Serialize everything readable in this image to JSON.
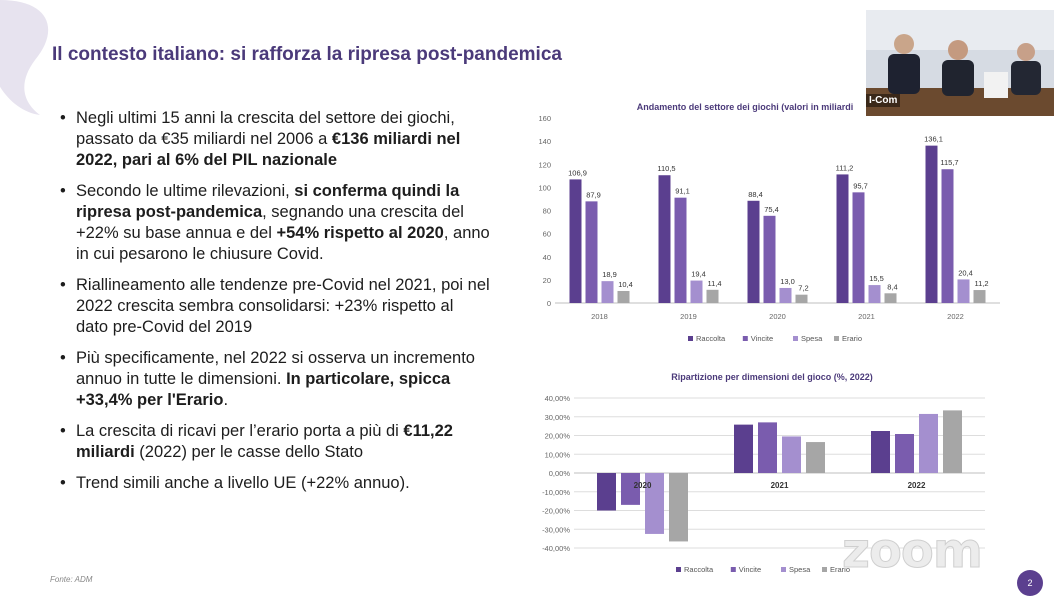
{
  "slide": {
    "title": "Il contesto italiano: si rafforza la ripresa post-pandemica",
    "fonte": "Fonte: ADM",
    "page_number": "2",
    "webcam_label": "I-Com",
    "zoom_watermark": "zoom",
    "bullets": [
      [
        {
          "t": "Negli ultimi 15 anni la crescita del settore dei giochi, passato da €35 miliardi nel 2006 a ",
          "b": false
        },
        {
          "t": "€136 miliardi nel 2022, pari al 6% del PIL nazionale",
          "b": true
        }
      ],
      [
        {
          "t": "Secondo le ultime rilevazioni, ",
          "b": false
        },
        {
          "t": "si conferma quindi la ripresa post-pandemica",
          "b": true
        },
        {
          "t": ", segnando una crescita del +22% su base annua e del ",
          "b": false
        },
        {
          "t": "+54% rispetto al 2020",
          "b": true
        },
        {
          "t": ", anno in cui pesarono le chiusure Covid.",
          "b": false
        }
      ],
      [
        {
          "t": "Riallineamento alle tendenze pre-Covid nel 2021, poi nel 2022 crescita sembra consolidarsi: +23% rispetto al dato pre-Covid del 2019",
          "b": false
        }
      ],
      [
        {
          "t": "Più specificamente, nel 2022 si osserva un incremento annuo in tutte le dimensioni. ",
          "b": false
        },
        {
          "t": "In particolare, spicca +33,4% per l'Erario",
          "b": true
        },
        {
          "t": ".",
          "b": false
        }
      ],
      [
        {
          "t": "La crescita di ricavi per l’erario porta a più di ",
          "b": false
        },
        {
          "t": "€11,22 miliardi",
          "b": true
        },
        {
          "t": " (2022) per le casse dello Stato",
          "b": false
        }
      ],
      [
        {
          "t": "Trend simili anche a livello UE (+22% annuo).",
          "b": false
        }
      ]
    ]
  },
  "colors": {
    "title": "#4b3a7a",
    "series": [
      "#5b3f8f",
      "#7a5cae",
      "#a48fcf",
      "#a6a6a6"
    ]
  },
  "chart_data": [
    {
      "type": "bar",
      "title": "Andamento del settore dei giochi (valori in miliardi",
      "categories": [
        "2018",
        "2019",
        "2020",
        "2021",
        "2022"
      ],
      "series": [
        {
          "name": "Raccolta",
          "values": [
            106.9,
            110.5,
            88.4,
            111.2,
            136.1
          ]
        },
        {
          "name": "Vincite",
          "values": [
            87.9,
            91.1,
            75.4,
            95.7,
            115.7
          ]
        },
        {
          "name": "Spesa",
          "values": [
            18.9,
            19.4,
            13.0,
            15.5,
            20.4
          ]
        },
        {
          "name": "Erario",
          "values": [
            10.4,
            11.4,
            7.2,
            8.4,
            11.2
          ]
        }
      ],
      "data_labels": [
        [
          "106,9",
          "110,5",
          "88,4",
          "111,2",
          "136,1"
        ],
        [
          "87,9",
          "91,1",
          "75,4",
          "95,7",
          "115,7"
        ],
        [
          "18,9",
          "19,4",
          "13,0",
          "15,5",
          "20,4"
        ],
        [
          "10,4",
          "11,4",
          "7,2",
          "8,4",
          "11,2"
        ]
      ],
      "ylim": [
        0,
        160
      ],
      "yticks": [
        0,
        20,
        40,
        60,
        80,
        100,
        120,
        140,
        160
      ],
      "ytick_labels": [
        "0",
        "20",
        "40",
        "60",
        "80",
        "100",
        "120",
        "140",
        "160"
      ],
      "legend": "bottom",
      "grid": false
    },
    {
      "type": "bar",
      "title": "Ripartizione per dimensioni del gioco (%, 2022)",
      "categories": [
        "2020",
        "2021",
        "2022"
      ],
      "series": [
        {
          "name": "Raccolta",
          "values": [
            -20.0,
            25.8,
            22.4
          ]
        },
        {
          "name": "Vincite",
          "values": [
            -17.0,
            27.0,
            20.8
          ]
        },
        {
          "name": "Spesa",
          "values": [
            -32.5,
            19.5,
            31.5
          ]
        },
        {
          "name": "Erario",
          "values": [
            -36.5,
            16.5,
            33.4
          ]
        }
      ],
      "ylim": [
        -40,
        40
      ],
      "yticks": [
        -40,
        -30,
        -20,
        -10,
        0,
        10,
        20,
        30,
        40
      ],
      "ytick_labels": [
        "-40,00%",
        "-30,00%",
        "-20,00%",
        "-10,00%",
        "0,00%",
        "10,00%",
        "20,00%",
        "30,00%",
        "40,00%"
      ],
      "legend": "bottom",
      "grid": true
    }
  ]
}
